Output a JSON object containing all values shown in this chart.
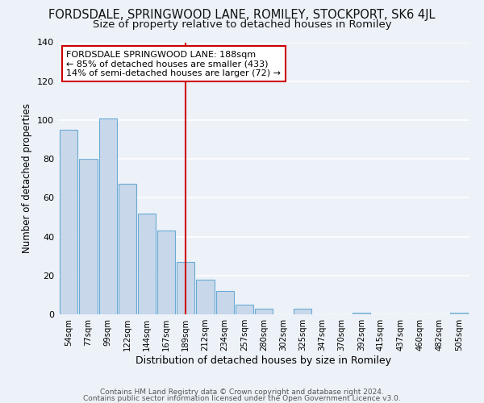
{
  "title1": "FORDSDALE, SPRINGWOOD LANE, ROMILEY, STOCKPORT, SK6 4JL",
  "title2": "Size of property relative to detached houses in Romiley",
  "xlabel": "Distribution of detached houses by size in Romiley",
  "ylabel": "Number of detached properties",
  "categories": [
    "54sqm",
    "77sqm",
    "99sqm",
    "122sqm",
    "144sqm",
    "167sqm",
    "189sqm",
    "212sqm",
    "234sqm",
    "257sqm",
    "280sqm",
    "302sqm",
    "325sqm",
    "347sqm",
    "370sqm",
    "392sqm",
    "415sqm",
    "437sqm",
    "460sqm",
    "482sqm",
    "505sqm"
  ],
  "values": [
    95,
    80,
    101,
    67,
    52,
    43,
    27,
    18,
    12,
    5,
    3,
    0,
    3,
    0,
    0,
    1,
    0,
    0,
    0,
    0,
    1
  ],
  "bar_color": "#c8d8ea",
  "bar_edge_color": "#6aaad4",
  "highlight_index": 6,
  "highlight_line_color": "#cc0000",
  "ylim": [
    0,
    140
  ],
  "yticks": [
    0,
    20,
    40,
    60,
    80,
    100,
    120,
    140
  ],
  "annotation_line1": "FORDSDALE SPRINGWOOD LANE: 188sqm",
  "annotation_line2": "← 85% of detached houses are smaller (433)",
  "annotation_line3": "14% of semi-detached houses are larger (72) →",
  "annotation_box_color": "#ffffff",
  "annotation_box_edge": "#cc0000",
  "footer1": "Contains HM Land Registry data © Crown copyright and database right 2024.",
  "footer2": "Contains public sector information licensed under the Open Government Licence v3.0.",
  "background_color": "#edf2f8",
  "plot_bg_color": "#edf2f8",
  "grid_color": "#ffffff",
  "title1_fontsize": 10.5,
  "title2_fontsize": 9.5,
  "xlabel_fontsize": 9,
  "ylabel_fontsize": 8.5,
  "annotation_fontsize": 8,
  "footer_fontsize": 6.5
}
